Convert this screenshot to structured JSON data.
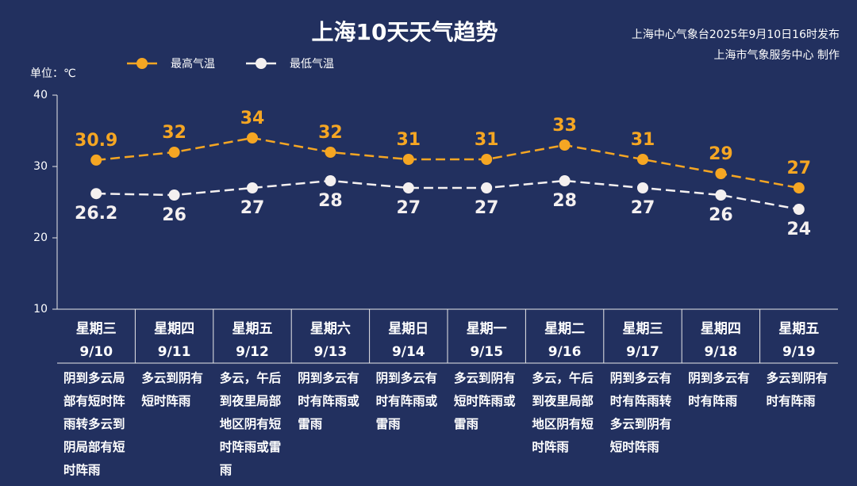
{
  "chart_data": {
    "type": "line",
    "title": "上海10天天气趋势",
    "subtitle": [
      "上海中心气象台2025年9月10日16时发布",
      "上海市气象服务中心 制作"
    ],
    "y_label": "单位：℃",
    "categories": [
      "9/10",
      "9/11",
      "9/12",
      "9/13",
      "9/14",
      "9/15",
      "9/16",
      "9/17",
      "9/18",
      "9/19"
    ],
    "weekdays": [
      "星期三",
      "星期四",
      "星期五",
      "星期六",
      "星期日",
      "星期一",
      "星期二",
      "星期三",
      "星期四",
      "星期五"
    ],
    "weather": [
      "阴到多云局部有短时阵雨转多云到阴局部有短时阵雨",
      "多云到阴有短时阵雨",
      "多云，午后到夜里局部地区阴有短时阵雨或雷雨",
      "阴到多云有时有阵雨或雷雨",
      "阴到多云有时有阵雨或雷雨",
      "多云到阴有短时阵雨或雷雨",
      "多云，午后到夜里局部地区阴有短时阵雨",
      "阴到多云有时有阵雨转多云到阴有短时阵雨",
      "阴到多云有时有阵雨",
      "多云到阴有时有阵雨"
    ],
    "series": [
      {
        "name": "最高气温",
        "color": "#f5a623",
        "values": [
          30.9,
          32,
          34,
          32,
          31,
          31,
          33,
          31,
          29,
          27
        ]
      },
      {
        "name": "最低气温",
        "color": "#f4f0f0",
        "values": [
          26.2,
          26,
          27,
          28,
          27,
          27,
          28,
          27,
          26,
          24
        ]
      }
    ],
    "ylim": [
      10,
      40
    ],
    "yticks": [
      10,
      20,
      30,
      40
    ],
    "grid": false
  }
}
